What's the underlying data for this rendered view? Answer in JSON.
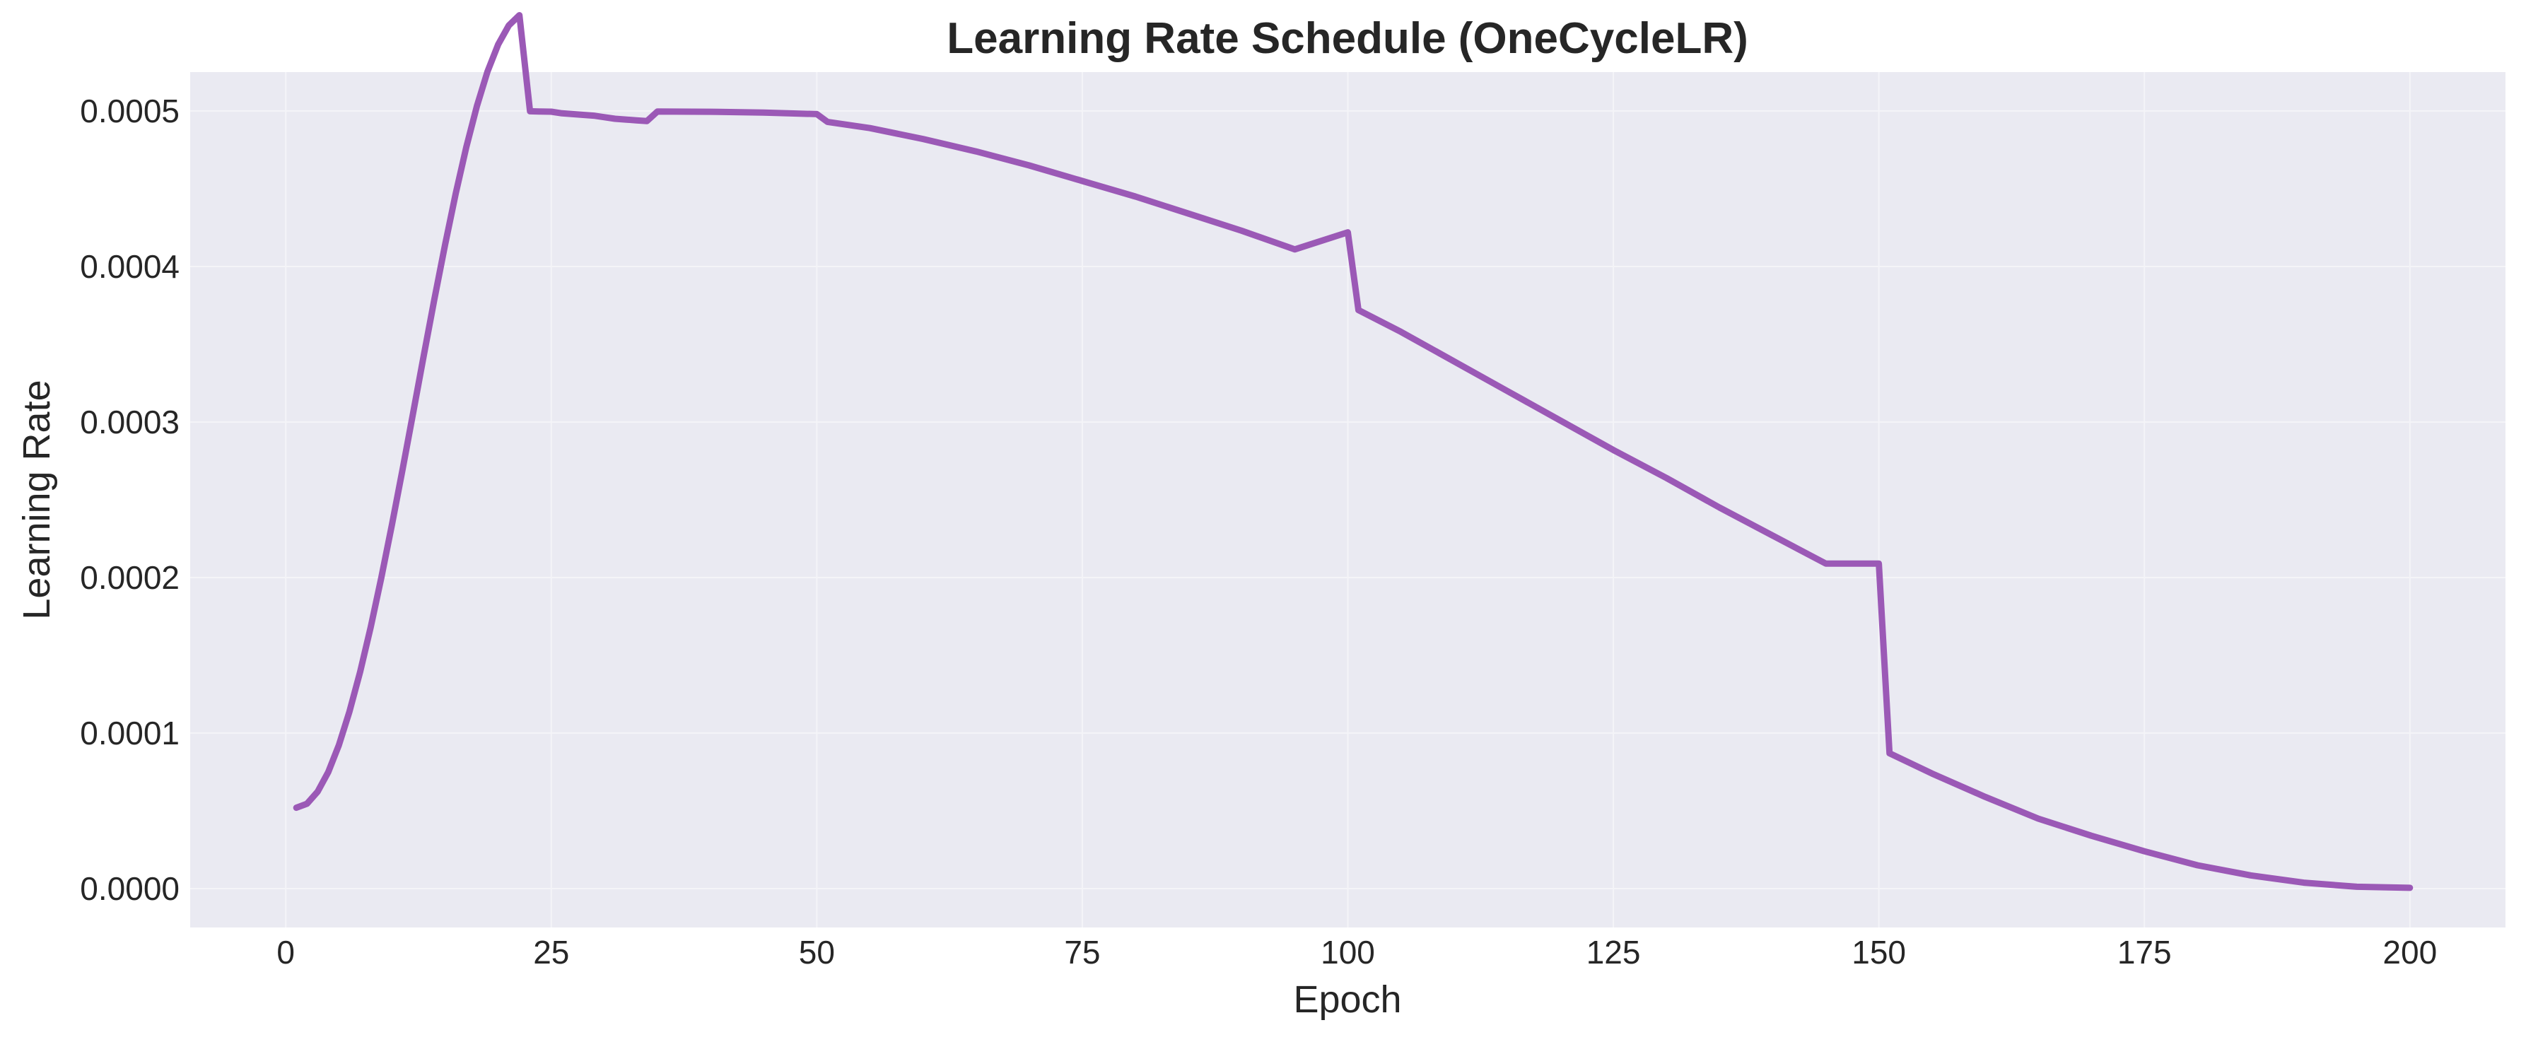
{
  "chart_data": {
    "type": "line",
    "title": "Learning Rate Schedule (OneCycleLR)",
    "xlabel": "Epoch",
    "ylabel": "Learning Rate",
    "xlim": [
      -9,
      209
    ],
    "ylim": [
      -2.5e-05,
      0.000525
    ],
    "xticks": [
      0,
      25,
      50,
      75,
      100,
      125,
      150,
      175,
      200
    ],
    "xtick_labels": [
      "0",
      "25",
      "50",
      "75",
      "100",
      "125",
      "150",
      "175",
      "200"
    ],
    "yticks": [
      0.0,
      0.0001,
      0.0002,
      0.0003,
      0.0004,
      0.0005
    ],
    "ytick_labels": [
      "0.0000",
      "0.0001",
      "0.0002",
      "0.0003",
      "0.0004",
      "0.0005"
    ],
    "grid": true,
    "background_color": "#eaeaf2",
    "series": [
      {
        "color": "#9b59b6",
        "x": [
          1,
          2,
          3,
          4,
          5,
          6,
          7,
          8,
          9,
          10,
          11,
          12,
          13,
          14,
          15,
          16,
          17,
          18,
          19,
          20,
          21,
          22,
          23,
          24,
          25,
          26,
          27,
          28,
          29,
          30,
          31,
          32,
          33,
          34,
          35,
          40,
          45,
          50,
          51,
          55,
          60,
          65,
          70,
          75,
          80,
          85,
          90,
          95,
          100,
          101,
          105,
          110,
          115,
          120,
          125,
          130,
          135,
          140,
          145,
          150,
          151,
          155,
          160,
          165,
          170,
          175,
          180,
          185,
          190,
          195,
          200
        ],
        "y": [
          5.2e-05,
          5.46e-05,
          6.23e-05,
          7.49e-05,
          9.22e-05,
          0.0001138,
          0.0001393,
          0.0001682,
          0.0002,
          0.000234,
          0.0002697,
          0.0003062,
          0.000343,
          0.0003792,
          0.0004141,
          0.0004469,
          0.0004768,
          0.0005032,
          0.0005254,
          0.0005428,
          0.000555,
          0.0005616,
          0.0004998,
          0.00049965,
          0.00049955,
          0.0004985,
          0.000498,
          0.0004975,
          0.000497,
          0.000496,
          0.000495,
          0.0004945,
          0.000494,
          0.0004935,
          0.0004997,
          0.0004995,
          0.000499,
          0.000498,
          0.000493,
          0.000489,
          0.000482,
          0.000474,
          0.000465,
          0.000455,
          0.000445,
          0.000434,
          0.000423,
          0.000411,
          0.000422,
          0.000372,
          0.000358,
          0.000339,
          0.00032,
          0.000301,
          0.000282,
          0.000264,
          0.000245,
          0.000227,
          0.000209,
          0.000209,
          8.7e-05,
          7.4e-05,
          5.9e-05,
          4.5e-05,
          3.4e-05,
          2.4e-05,
          1.5e-05,
          8.5e-06,
          3.8e-06,
          1.2e-06,
          5e-07
        ]
      }
    ]
  }
}
